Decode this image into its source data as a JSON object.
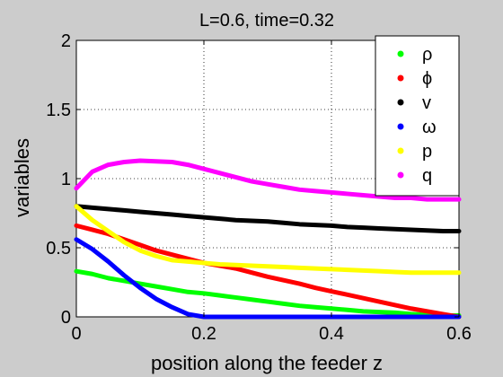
{
  "chart_data": {
    "type": "line",
    "title": "L=0.6, time=0.32",
    "xlabel": "position along the feeder z",
    "ylabel": "variables",
    "xlim": [
      0,
      0.6
    ],
    "ylim": [
      0,
      2
    ],
    "xticks": [
      "0",
      "0.2",
      "0.4",
      "0.6"
    ],
    "yticks": [
      "0",
      "0.5",
      "1",
      "1.5",
      "2"
    ],
    "grid": true,
    "legend_position": "top-right",
    "x": [
      0,
      0.025,
      0.05,
      0.075,
      0.1,
      0.125,
      0.15,
      0.175,
      0.2,
      0.225,
      0.25,
      0.275,
      0.3,
      0.325,
      0.35,
      0.375,
      0.4,
      0.425,
      0.45,
      0.475,
      0.5,
      0.525,
      0.55,
      0.575,
      0.6
    ],
    "series": [
      {
        "name": "ρ",
        "color": "#00ff00",
        "values": [
          0.33,
          0.31,
          0.28,
          0.26,
          0.24,
          0.22,
          0.2,
          0.18,
          0.17,
          0.155,
          0.14,
          0.125,
          0.11,
          0.095,
          0.08,
          0.07,
          0.06,
          0.05,
          0.04,
          0.035,
          0.03,
          0.02,
          0.015,
          0.01,
          0.01
        ]
      },
      {
        "name": "ϕ",
        "color": "#ff0000",
        "values": [
          0.66,
          0.63,
          0.6,
          0.56,
          0.52,
          0.48,
          0.45,
          0.42,
          0.39,
          0.37,
          0.35,
          0.32,
          0.29,
          0.265,
          0.24,
          0.21,
          0.185,
          0.16,
          0.135,
          0.11,
          0.085,
          0.06,
          0.04,
          0.02,
          0.0
        ]
      },
      {
        "name": "v",
        "color": "#000000",
        "values": [
          0.8,
          0.79,
          0.78,
          0.77,
          0.76,
          0.75,
          0.74,
          0.73,
          0.72,
          0.71,
          0.7,
          0.695,
          0.69,
          0.68,
          0.67,
          0.665,
          0.66,
          0.65,
          0.645,
          0.64,
          0.635,
          0.63,
          0.625,
          0.62,
          0.62
        ]
      },
      {
        "name": "ω",
        "color": "#0000ff",
        "values": [
          0.56,
          0.49,
          0.4,
          0.3,
          0.21,
          0.13,
          0.07,
          0.02,
          0.0,
          0.0,
          0.0,
          0.0,
          0.0,
          0.0,
          0.0,
          0.0,
          0.0,
          0.0,
          0.0,
          0.0,
          0.0,
          0.0,
          0.0,
          0.0,
          0.0
        ]
      },
      {
        "name": "p",
        "color": "#ffff00",
        "values": [
          0.8,
          0.7,
          0.62,
          0.54,
          0.48,
          0.44,
          0.41,
          0.4,
          0.39,
          0.38,
          0.375,
          0.37,
          0.365,
          0.36,
          0.355,
          0.35,
          0.345,
          0.34,
          0.335,
          0.33,
          0.325,
          0.32,
          0.32,
          0.32,
          0.32
        ]
      },
      {
        "name": "q",
        "color": "#ff00ff",
        "values": [
          0.93,
          1.05,
          1.1,
          1.12,
          1.13,
          1.125,
          1.12,
          1.1,
          1.07,
          1.04,
          1.01,
          0.98,
          0.96,
          0.94,
          0.92,
          0.91,
          0.9,
          0.89,
          0.88,
          0.87,
          0.86,
          0.86,
          0.85,
          0.85,
          0.85
        ]
      }
    ]
  }
}
